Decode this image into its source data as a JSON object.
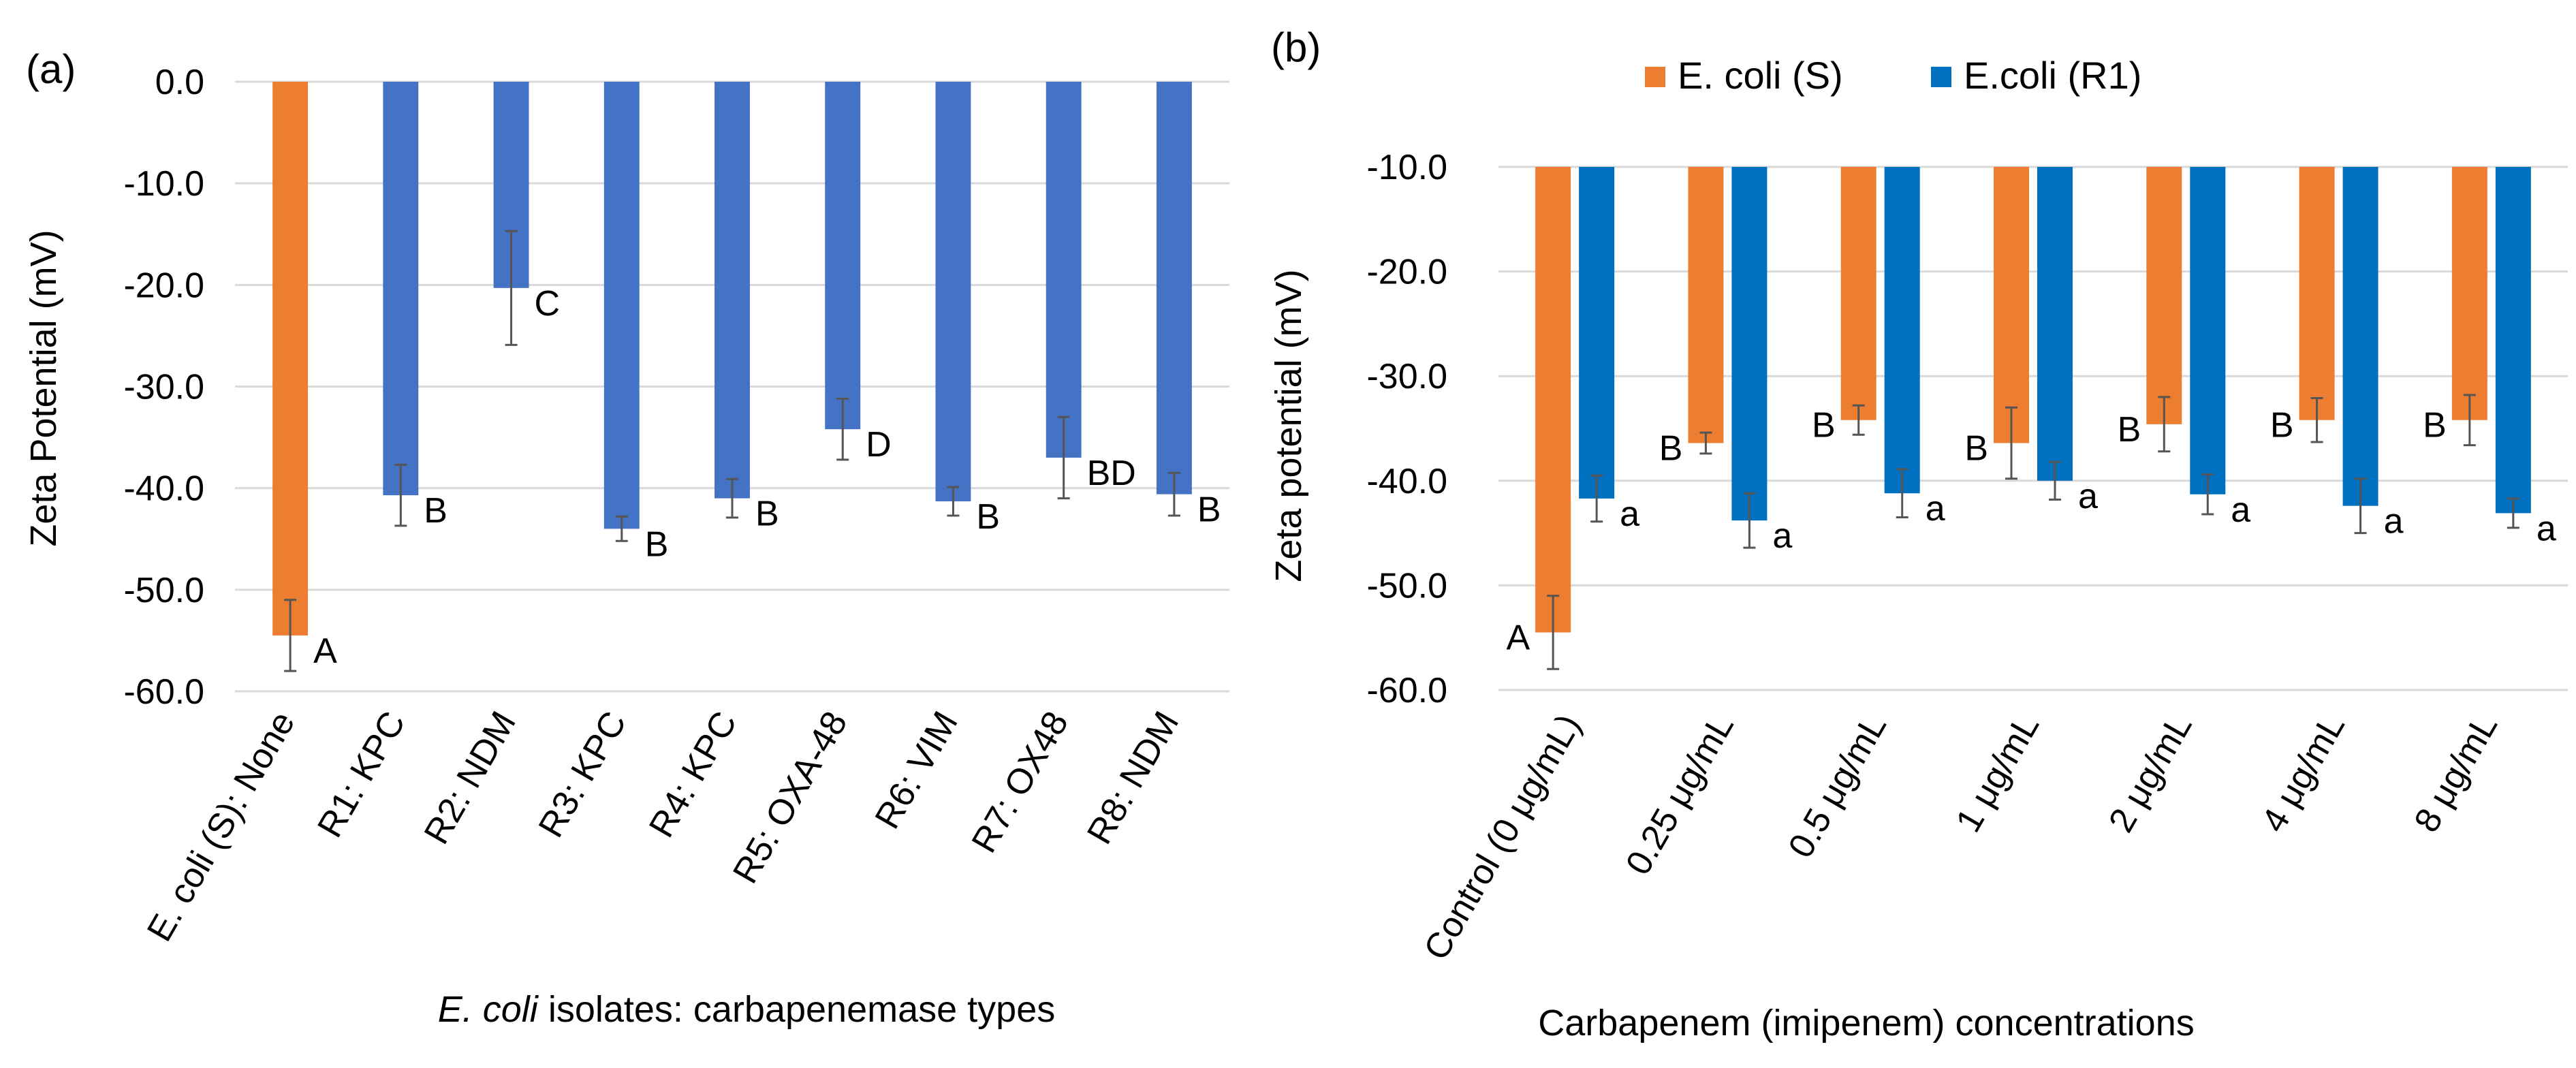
{
  "colors": {
    "orange": "#ED7D31",
    "blue_a": "#4472C4",
    "blue_b": "#0070C0",
    "grid": "#D9D9D9",
    "error": "#555555"
  },
  "chart_data": [
    {
      "type": "bar",
      "panel_label": "(a)",
      "ylabel": "Zeta Potential (mV)",
      "xlabel_italic": "E. coli",
      "xlabel_rest": " isolates: carbapenemase types",
      "ylim": [
        -60,
        0
      ],
      "yticks": [
        0,
        -10,
        -20,
        -30,
        -40,
        -50,
        -60
      ],
      "ytick_labels": [
        "0.0",
        "-10.0",
        "-20.0",
        "-30.0",
        "-40.0",
        "-50.0",
        "-60.0"
      ],
      "grid": true,
      "categories": [
        "E. coli (S): None",
        "R1: KPC",
        "R2: NDM",
        "R3: KPC",
        "R4: KPC",
        "R5: OXA-48",
        "R6: VIM",
        "R7: OX48",
        "R8: NDM"
      ],
      "values": [
        -54.5,
        -40.7,
        -20.3,
        -44.0,
        -41.0,
        -34.2,
        -41.3,
        -37.0,
        -40.6
      ],
      "errors": [
        3.5,
        3.0,
        5.6,
        1.2,
        1.9,
        3.0,
        1.4,
        4.0,
        2.1
      ],
      "colors": [
        "orange",
        "blue_a",
        "blue_a",
        "blue_a",
        "blue_a",
        "blue_a",
        "blue_a",
        "blue_a",
        "blue_a"
      ],
      "labels": [
        "A",
        "B",
        "C",
        "B",
        "B",
        "D",
        "B",
        "BD",
        "B"
      ]
    },
    {
      "type": "bar",
      "panel_label": "(b)",
      "ylabel": "Zeta potential (mV)",
      "xlabel": "Carbapenem (imipenem) concentrations",
      "ylim": [
        -60,
        -10
      ],
      "yticks": [
        -10,
        -20,
        -30,
        -40,
        -50,
        -60
      ],
      "ytick_labels": [
        "-10.0",
        "-20.0",
        "-30.0",
        "-40.0",
        "-50.0",
        "-60.0"
      ],
      "grid": true,
      "legend_position": "top",
      "categories": [
        "Control (0  μg/mL)",
        "0.25 μg/mL",
        "0.5 μg/mL",
        "1 μg/mL",
        "2 μg/mL",
        "4 μg/mL",
        "8 μg/mL"
      ],
      "series": [
        {
          "name": "E. coli (S)",
          "color": "orange",
          "values": [
            -54.5,
            -36.4,
            -34.2,
            -36.4,
            -34.6,
            -34.2,
            -34.2
          ],
          "errors": [
            3.5,
            1.0,
            1.4,
            3.4,
            2.6,
            2.1,
            2.4
          ],
          "labels": [
            "A",
            "B",
            "B",
            "B",
            "B",
            "B",
            "B"
          ]
        },
        {
          "name": "E.coli (R1)",
          "color": "blue_b",
          "values": [
            -41.7,
            -43.8,
            -41.2,
            -40.0,
            -41.3,
            -42.4,
            -43.1
          ],
          "errors": [
            2.2,
            2.6,
            2.3,
            1.8,
            1.9,
            2.6,
            1.4
          ],
          "labels": [
            "a",
            "a",
            "a",
            "a",
            "a",
            "a",
            "a"
          ]
        }
      ]
    }
  ]
}
